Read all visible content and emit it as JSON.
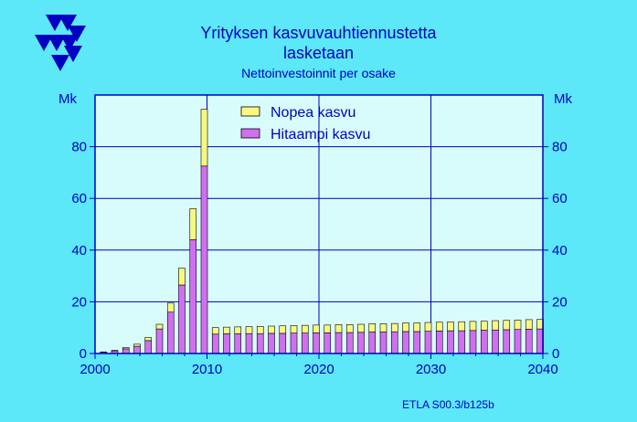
{
  "chart_data": {
    "type": "bar",
    "stacked": true,
    "title": "Yrityksen  kasvuvauhtiennustetta",
    "title_line2": "lasketaan",
    "subtitle": "Nettoinvestoinnit per osake",
    "ylabel_left": "Mk",
    "ylabel_right": "Mk",
    "xlim": [
      2000,
      2040
    ],
    "ylim": [
      0,
      100
    ],
    "xticks": [
      "2000",
      "2010",
      "2020",
      "2030",
      "2040"
    ],
    "yticks": [
      "0",
      "20",
      "40",
      "60",
      "80"
    ],
    "grid": true,
    "legend_position": "top",
    "source": "ETLA S00.3/b125b",
    "colors": {
      "background": "#5ce8f8",
      "plot_bg": "#d8fcfc",
      "axis": "#0000c0",
      "nopea": "#f8f880",
      "hitaampi": "#d070f0",
      "bar_edge": "#000000"
    },
    "x": [
      2001,
      2002,
      2003,
      2004,
      2005,
      2006,
      2007,
      2008,
      2009,
      2010,
      2011,
      2012,
      2013,
      2014,
      2015,
      2016,
      2017,
      2018,
      2019,
      2020,
      2021,
      2022,
      2023,
      2024,
      2025,
      2026,
      2027,
      2028,
      2029,
      2030,
      2031,
      2032,
      2033,
      2034,
      2035,
      2036,
      2037,
      2038,
      2039,
      2040
    ],
    "series": [
      {
        "name": "Hitaampi kasvu",
        "values": [
          0.5,
          1.0,
          1.8,
          2.8,
          5.0,
          9.5,
          16.0,
          26.5,
          44.0,
          72.5,
          7.5,
          7.6,
          7.6,
          7.7,
          7.7,
          7.8,
          7.8,
          7.9,
          7.9,
          8.0,
          8.0,
          8.1,
          8.1,
          8.2,
          8.3,
          8.3,
          8.4,
          8.5,
          8.5,
          8.6,
          8.7,
          8.8,
          8.8,
          8.9,
          9.0,
          9.1,
          9.2,
          9.3,
          9.4,
          9.5
        ]
      },
      {
        "name": "Nopea kasvu",
        "values": [
          0.1,
          0.2,
          0.5,
          0.8,
          1.2,
          1.8,
          3.5,
          6.5,
          12.0,
          22.0,
          2.5,
          2.6,
          2.7,
          2.7,
          2.8,
          2.8,
          2.9,
          2.9,
          3.0,
          3.0,
          3.0,
          3.1,
          3.1,
          3.1,
          3.2,
          3.2,
          3.2,
          3.3,
          3.3,
          3.4,
          3.4,
          3.4,
          3.5,
          3.5,
          3.5,
          3.6,
          3.6,
          3.6,
          3.7,
          3.7
        ]
      }
    ]
  }
}
